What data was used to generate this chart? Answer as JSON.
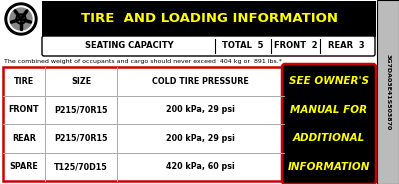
{
  "title": "TIRE  AND LOADING INFORMATION",
  "seating_label": "SEATING CAPACITY",
  "total_label": "TOTAL",
  "total_val": "5",
  "front_label": "FRONT",
  "front_val": "2",
  "rear_label": "REAR",
  "rear_val": "3",
  "warning_text": "The combined weight of occupants and cargo should never exceed  404 kg or  891 lbs.*",
  "col_headers": [
    "TIRE",
    "SIZE",
    "COLD TIRE PRESSURE"
  ],
  "rows": [
    [
      "FRONT",
      "P215/70R15",
      "200 kPa, 29 psi"
    ],
    [
      "REAR",
      "P215/70R15",
      "200 kPa, 29 psi"
    ],
    [
      "SPARE",
      "T125/70D15",
      "420 kPa, 60 psi"
    ]
  ],
  "side_text": [
    "SEE OWNER'S",
    "MANUAL FOR",
    "ADDITIONAL",
    "INFORMATION"
  ],
  "serial": "3G7DA03E41S503870",
  "header_bg": "#000000",
  "header_text_color": "#ffff00",
  "table_border_color": "#cc0000",
  "side_panel_text": "#ffff00",
  "white": "#ffffff",
  "black": "#000000",
  "light_gray": "#dddddd",
  "serial_bg": "#bbbbbb",
  "grid_color": "#aaaaaa"
}
